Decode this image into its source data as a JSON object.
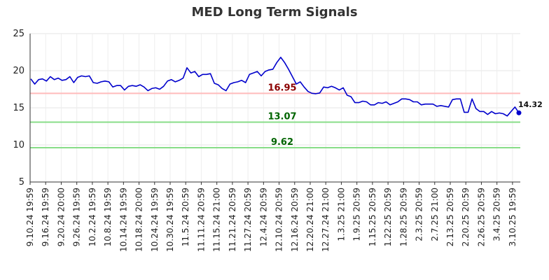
{
  "chart_data": {
    "type": "line",
    "title": "MED Long Term Signals",
    "xlabel": "",
    "ylabel": "",
    "ylim": [
      5,
      25
    ],
    "yticks": [
      5,
      10,
      15,
      20,
      25
    ],
    "grid": true,
    "x_tick_labels": [
      "9.10.24 19:59",
      "9.16.24 19:59",
      "9.20.24 20:00",
      "9.26.24 19:59",
      "10.2.24 19:59",
      "10.8.24 19:59",
      "10.14.24 19:59",
      "10.18.24 20:00",
      "10.24.24 19:59",
      "10.30.24 19:59",
      "11.5.24 20:59",
      "11.11.24 20:59",
      "11.15.24 21:00",
      "11.21.24 20:59",
      "11.27.24 20:59",
      "12.4.24 20:59",
      "12.10.24 20:59",
      "12.16.24 20:59",
      "12.20.24 21:00",
      "12.27.24 21:00",
      "1.3.25 21:00",
      "1.9.25 20:59",
      "1.15.25 20:59",
      "1.22.25 20:59",
      "1.28.25 20:59",
      "2.3.25 20:59",
      "2.7.25 21:00",
      "2.13.25 20:59",
      "2.20.25 20:59",
      "2.26.25 20:59",
      "3.4.25 20:59",
      "3.10.25 19:59"
    ],
    "series": [
      {
        "color": "#0000cc",
        "values": [
          18.9,
          18.2,
          18.8,
          18.9,
          18.6,
          19.2,
          18.8,
          19.0,
          18.7,
          18.8,
          19.2,
          18.4,
          19.1,
          19.3,
          19.2,
          19.3,
          18.4,
          18.3,
          18.5,
          18.6,
          18.5,
          17.8,
          18.0,
          18.0,
          17.4,
          17.9,
          18.0,
          17.9,
          18.1,
          17.8,
          17.3,
          17.6,
          17.7,
          17.5,
          17.9,
          18.6,
          18.8,
          18.5,
          18.7,
          19.0,
          20.4,
          19.7,
          19.9,
          19.2,
          19.5,
          19.5,
          19.6,
          18.3,
          18.1,
          17.6,
          17.3,
          18.2,
          18.4,
          18.5,
          18.7,
          18.4,
          19.5,
          19.7,
          19.9,
          19.3,
          19.9,
          20.1,
          20.2,
          21.1,
          21.8,
          21.1,
          20.2,
          19.2,
          18.2,
          18.5,
          17.8,
          17.2,
          16.95,
          16.9,
          17.0,
          17.8,
          17.7,
          17.9,
          17.7,
          17.4,
          17.7,
          16.7,
          16.5,
          15.7,
          15.7,
          15.9,
          15.8,
          15.4,
          15.4,
          15.7,
          15.6,
          15.8,
          15.4,
          15.6,
          15.8,
          16.2,
          16.2,
          16.1,
          15.8,
          15.8,
          15.4,
          15.5,
          15.5,
          15.5,
          15.2,
          15.3,
          15.2,
          15.1,
          16.1,
          16.2,
          16.2,
          14.4,
          14.4,
          16.2,
          14.9,
          14.5,
          14.5,
          14.1,
          14.5,
          14.2,
          14.3,
          14.2,
          13.9,
          14.5,
          15.1,
          14.32
        ]
      }
    ],
    "reference_lines": [
      {
        "value": 16.95,
        "label": "16.95",
        "line_color": "#ffbbbb",
        "label_color": "#8b0000"
      },
      {
        "value": 13.07,
        "label": "13.07",
        "line_color": "#88dd88",
        "label_color": "#006400"
      },
      {
        "value": 9.62,
        "label": "9.62",
        "line_color": "#88dd88",
        "label_color": "#006400"
      }
    ],
    "last_value_label": "14.32"
  }
}
